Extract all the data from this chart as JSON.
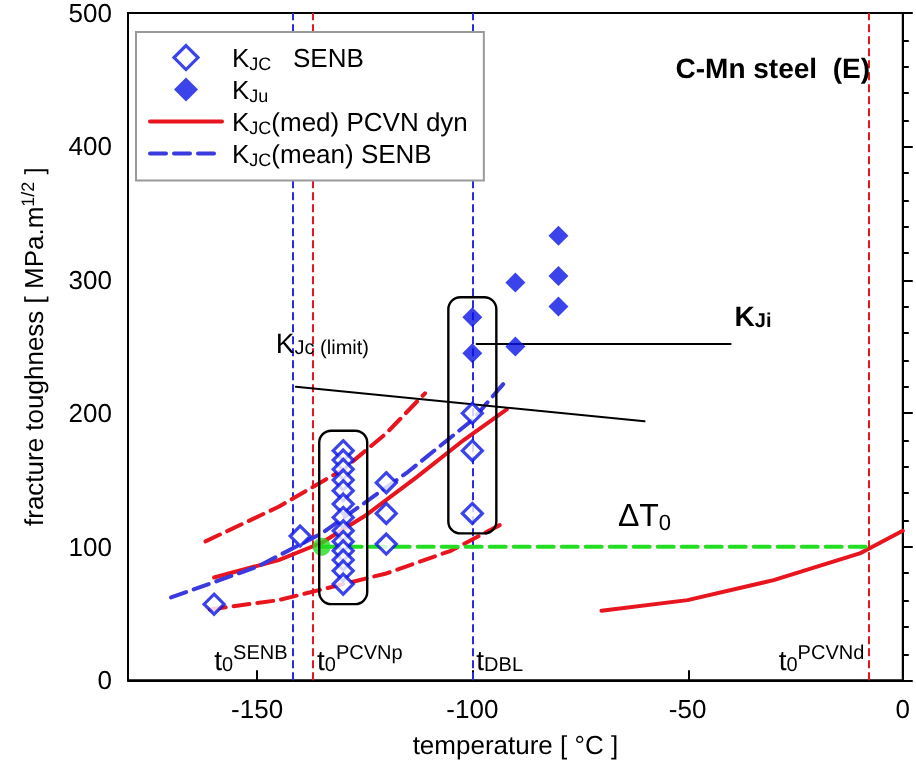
{
  "chart_data": {
    "type": "scatter",
    "title": "C-Mn steel  (E)",
    "xlabel": "temperature [ °C ]",
    "ylabel": "fracture toughness [ MPa.m$^{1/2}$ ]",
    "xlim": [
      -180,
      0
    ],
    "xticks": [
      -150,
      -100,
      -50,
      0
    ],
    "ylim": [
      0,
      500
    ],
    "yticks": [
      0,
      100,
      200,
      300,
      400,
      500
    ],
    "grid": false,
    "legend": "top left",
    "series": [
      {
        "name": "K$_{JC}$   SENB",
        "marker": "diamond",
        "color": "#0a14e6",
        "x": [
          -160,
          -140,
          -130,
          -130,
          -130,
          -130,
          -130,
          -130,
          -130,
          -130,
          -130,
          -130,
          -130,
          -130,
          -130,
          -120,
          -120,
          -120,
          -100,
          -100,
          -100
        ],
        "values": [
          57,
          108,
          172,
          165,
          158,
          150,
          142,
          132,
          122,
          112,
          104,
          97,
          90,
          82,
          72,
          148,
          125,
          102,
          200,
          172,
          125
        ]
      },
      {
        "name": "K$_{Ju}$",
        "marker": "diamond",
        "color": "#0a14e6",
        "x": [
          -100,
          -100,
          -90,
          -90,
          -80,
          -80,
          -80
        ],
        "values": [
          272,
          245,
          298,
          250,
          333,
          303,
          280
        ]
      },
      {
        "name": "K$_{JC}$(med) PCVN dyn",
        "type": "line",
        "marker": "none",
        "line_style": "solid",
        "color": "#e8141e",
        "x": [
          -160,
          -145,
          -135,
          -125,
          -113,
          -102,
          -92
        ],
        "values": [
          77,
          90,
          103,
          123,
          152,
          180,
          203
        ]
      },
      {
        "name": "K$_{JC}$(mean) SENB",
        "type": "line",
        "marker": "none",
        "line_style": "dashed",
        "color": "#3a3ae0",
        "x": [
          -170,
          -150,
          -135,
          -115,
          -100,
          -92
        ],
        "values": [
          62,
          85,
          110,
          156,
          195,
          225
        ]
      },
      {
        "type": "line",
        "marker": "none",
        "line_style": "dashed",
        "color": "#e8141e",
        "x": [
          -162,
          -145,
          -130,
          -120,
          -111
        ],
        "values": [
          104,
          130,
          158,
          185,
          215
        ]
      },
      {
        "type": "line",
        "marker": "none",
        "line_style": "dashed",
        "color": "#e8141e",
        "x": [
          -161,
          -145,
          -135,
          -120,
          -105,
          -92
        ],
        "values": [
          53,
          60,
          68,
          80,
          97,
          119
        ]
      },
      {
        "type": "line",
        "marker": "none",
        "line_style": "solid",
        "color": "#e8141e",
        "x": [
          -70,
          -50,
          -30,
          -10,
          0
        ],
        "values": [
          52,
          60,
          75,
          95,
          112
        ]
      },
      {
        "type": "line",
        "marker": "none",
        "line_style": "solid",
        "color": "#000000",
        "x": [
          -141,
          -60
        ],
        "values": [
          220,
          194
        ]
      },
      {
        "type": "line",
        "marker": "none",
        "line_style": "solid",
        "color": "#000000",
        "x": [
          -99,
          -40
        ],
        "values": [
          252,
          252
        ]
      },
      {
        "type": "line",
        "marker": "none",
        "line_style": "dashed",
        "color": "#22dd22",
        "x": [
          -135,
          -8
        ],
        "values": [
          100,
          100
        ]
      },
      {
        "marker": "circle",
        "color": "#22dd22",
        "x": [
          -135
        ],
        "values": [
          100
        ]
      }
    ],
    "ref_lines": [
      {
        "axis": "x",
        "value": -142,
        "label": "t$_{0}$$^{SENB}$",
        "color": "#2a2ae6",
        "line_style": "dashed"
      },
      {
        "axis": "x",
        "value": -137,
        "label": "t$_{0}$$^{PCVNp}$",
        "color": "#e8141e",
        "line_style": "dashed"
      },
      {
        "axis": "x",
        "value": -100,
        "label": "t$_{DBL}$",
        "color": "#2a2ae6",
        "line_style": "dashed"
      },
      {
        "axis": "x",
        "value": -8,
        "label": "t$_{0}$$^{PCVNd}$",
        "color": "#e8141e",
        "line_style": "dashed"
      }
    ],
    "annotations": [
      {
        "text": "K$_{Jc (limit)}$",
        "x": -141,
        "y": 220
      },
      {
        "text": "K$_{Ji}$",
        "x": -40,
        "y": 252
      },
      {
        "text": "ΔT$_{0}$",
        "x": -60,
        "y": 100
      }
    ]
  }
}
